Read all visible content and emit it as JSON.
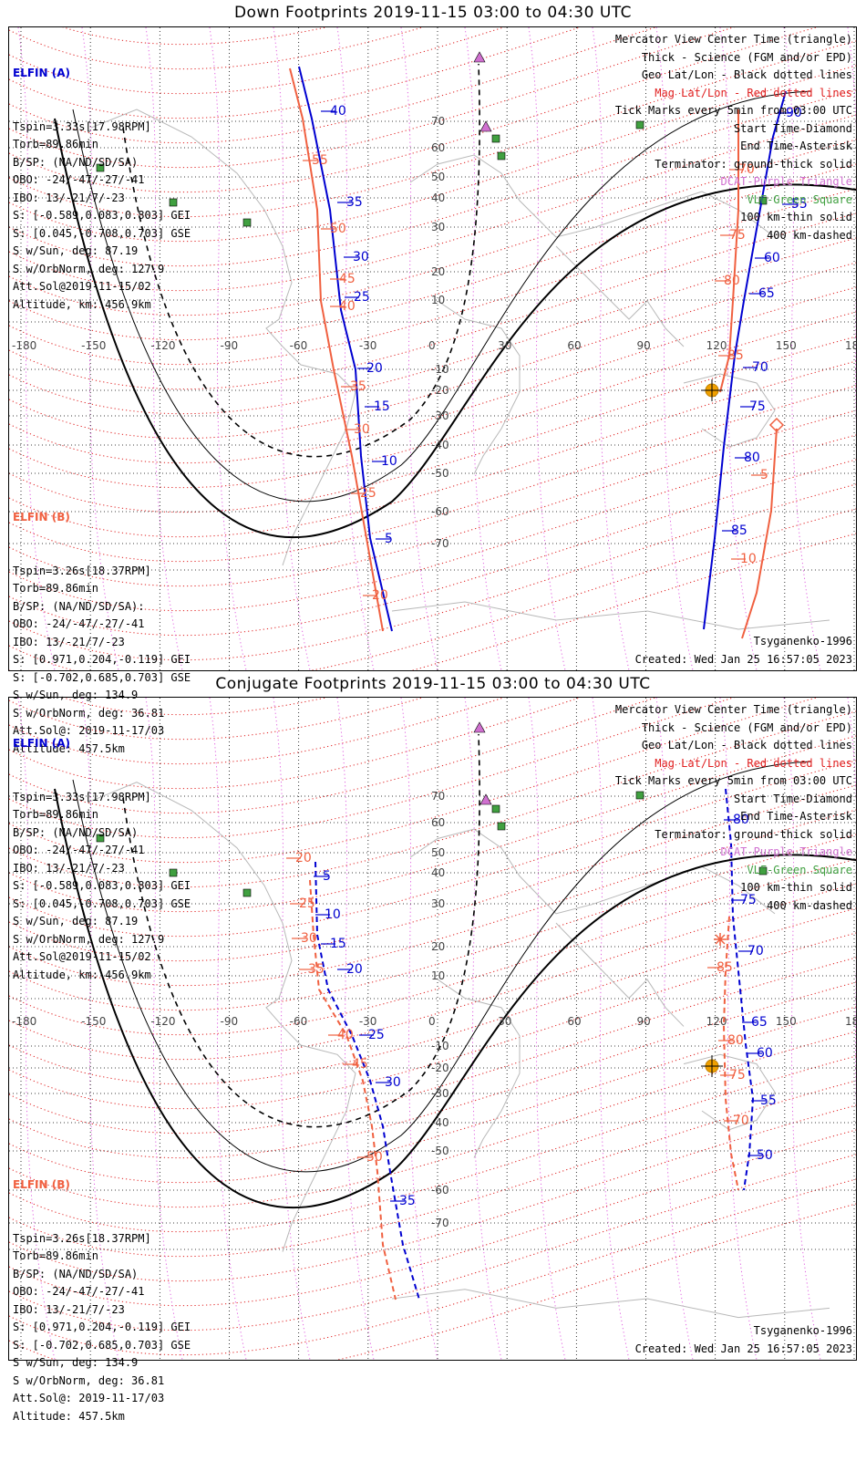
{
  "panels": [
    {
      "title": "Down Footprints 2019-11-15 03:00 to 04:30 UTC",
      "elfin_a": {
        "header": "ELFIN (A)",
        "lines": [
          "Tspin=3.33s[17.98RPM]",
          "Torb=89.86min",
          "B/SP: (NA/ND/SD/SA)",
          "OBO: -24/-47/-27/-41",
          "IBO: 13/-21/7/-23",
          "S: [-0.589,0.083,0.803] GEI",
          "S: [0.045,-0.708,0.703] GSE",
          "S w/Sun, deg: 87.19",
          "S w/OrbNorm, deg: 127.9",
          "Att.Sol@2019-11-15/02",
          "Altitude, km: 456.9km"
        ]
      },
      "elfin_b": {
        "header": "ELFIN (B)",
        "lines": [
          "Tspin=3.26s[18.37RPM]",
          "Torb=89.86min",
          "B/SP: (NA/ND/SD/SA):",
          "OBO: -24/-47/-27/-41",
          "IBO: 13/-21/7/-23",
          "S: [0.971,0.204,-0.119] GEI",
          "S: [-0.702,0.685,0.703] GSE",
          "S w/Sun, deg: 134.9",
          "S w/OrbNorm, deg: 36.81",
          "Att.Sol@: 2019-11-17/03",
          "Altitude: 457.5km"
        ]
      },
      "legend": [
        {
          "text": "Mercator View Center Time (triangle)",
          "color": "#000000"
        },
        {
          "text": "Thick - Science (FGM and/or EPD)",
          "color": "#000000"
        },
        {
          "text": "Geo Lat/Lon - Black dotted lines",
          "color": "#000000"
        },
        {
          "text": "Mag Lat/Lon - Red dotted lines",
          "color": "#e02020"
        },
        {
          "text": "Tick Marks every 5min from 03:00 UTC",
          "color": "#000000"
        },
        {
          "text": "Start Time-Diamond",
          "color": "#000000"
        },
        {
          "text": "End Time-Asterisk",
          "color": "#000000"
        },
        {
          "text": "Terminator: ground-thick solid",
          "color": "#000000"
        },
        {
          "text": "DCAT-Purple Triangle",
          "color": "#d070d0"
        },
        {
          "text": "VLF-Green Square",
          "color": "#40a040"
        },
        {
          "text": "100 km-thin solid",
          "color": "#000000"
        },
        {
          "text": "400 km-dashed",
          "color": "#000000"
        }
      ],
      "model": "Tsyganenko-1996",
      "created": "Created: Wed Jan 25 16:57:05 2023",
      "lon_labels": [
        "-180",
        "-150",
        "-120",
        "-90",
        "-60",
        "-30",
        "0",
        "30",
        "60",
        "90",
        "120",
        "150",
        "180"
      ],
      "lat_labels": [
        "70",
        "60",
        "50",
        "40",
        "30",
        "20",
        "10",
        "-10",
        "-20",
        "-30",
        "-40",
        "-50",
        "-60",
        "-70"
      ],
      "track_a_ticks": [
        "40",
        "35",
        "30",
        "25",
        "20",
        "15",
        "10",
        "5"
      ],
      "track_b_ticks": [
        "55",
        "50",
        "45",
        "40",
        "35",
        "30",
        "25",
        "20"
      ],
      "track_a2_ticks": [
        "90",
        "55",
        "60",
        "65",
        "70",
        "75",
        "80",
        "85"
      ],
      "track_b2_ticks": [
        "70",
        "75",
        "80",
        "85",
        "5",
        "10"
      ]
    },
    {
      "title": "Conjugate Footprints 2019-11-15 03:00 to 04:30 UTC",
      "elfin_a": {
        "header": "ELFIN (A)",
        "lines": [
          "Tspin=3.33s[17.98RPM]",
          "Torb=89.86min",
          "B/SP: (NA/ND/SD/SA)",
          "OBO: -24/-47/-27/-41",
          "IBO: 13/-21/7/-23",
          "S: [-0.589,0.083,0.803] GEI",
          "S: [0.045,-0.708,0.703] GSE",
          "S w/Sun, deg: 87.19",
          "S w/OrbNorm, deg: 127.9",
          "Att.Sol@2019-11-15/02",
          "Altitude, km: 456.9km"
        ]
      },
      "elfin_b": {
        "header": "ELFIN (B)",
        "lines": [
          "Tspin=3.26s[18.37RPM]",
          "Torb=89.86min",
          "B/SP: (NA/ND/SD/SA)",
          "OBO: -24/-47/-27/-41",
          "IBO: 13/-21/7/-23",
          "S: [0.971,0.204,-0.119] GEI",
          "S: [-0.702,0.685,0.703] GSE",
          "S w/Sun, deg: 134.9",
          "S w/OrbNorm, deg: 36.81",
          "Att.Sol@: 2019-11-17/03",
          "Altitude: 457.5km"
        ]
      },
      "legend": [
        {
          "text": "Mercator View Center Time (triangle)",
          "color": "#000000"
        },
        {
          "text": "Thick - Science (FGM and/or EPD)",
          "color": "#000000"
        },
        {
          "text": "Geo Lat/Lon - Black dotted lines",
          "color": "#000000"
        },
        {
          "text": "Mag Lat/Lon - Red dotted lines",
          "color": "#e02020"
        },
        {
          "text": "Tick Marks every 5min from 03:00 UTC",
          "color": "#000000"
        },
        {
          "text": "Start Time-Diamond",
          "color": "#000000"
        },
        {
          "text": "End Time-Asterisk",
          "color": "#000000"
        },
        {
          "text": "Terminator: ground-thick solid",
          "color": "#000000"
        },
        {
          "text": "DCAT-Purple Triangle",
          "color": "#d070d0"
        },
        {
          "text": "VLF-Green Square",
          "color": "#40a040"
        },
        {
          "text": "100 km-thin solid",
          "color": "#000000"
        },
        {
          "text": "400 km-dashed",
          "color": "#000000"
        }
      ],
      "model": "Tsyganenko-1996",
      "created": "Created: Wed Jan 25 16:57:05 2023",
      "lon_labels": [
        "-180",
        "-150",
        "-120",
        "-90",
        "-60",
        "-30",
        "0",
        "30",
        "60",
        "90",
        "120",
        "150",
        "180"
      ],
      "lat_labels": [
        "70",
        "60",
        "50",
        "40",
        "30",
        "20",
        "10",
        "-10",
        "-20",
        "-30",
        "-40",
        "-50",
        "-60",
        "-70"
      ],
      "track_a_ticks": [
        "5",
        "10",
        "15",
        "20",
        "25",
        "30",
        "35"
      ],
      "track_b_ticks": [
        "20",
        "25",
        "30",
        "35",
        "40",
        "45",
        "50"
      ],
      "track_a2_ticks": [
        "80",
        "75",
        "70",
        "65",
        "60",
        "55",
        "50"
      ],
      "track_b2_ticks": [
        "85",
        "80",
        "75",
        "70"
      ]
    }
  ],
  "colors": {
    "elfin_a": "#0000d0",
    "elfin_b": "#f06040",
    "mag_grid": "#e02020",
    "geo_grid": "#000000",
    "dcat": "#d070d0",
    "vlf": "#40a040",
    "coast": "#b8b8b8",
    "sun": "#f0a000"
  }
}
